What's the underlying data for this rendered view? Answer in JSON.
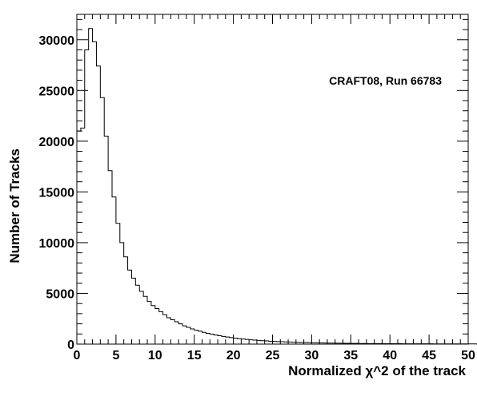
{
  "chart_data": {
    "type": "bar",
    "histogram": true,
    "xlabel": "Normalized χ^2 of the track",
    "ylabel": "Number of Tracks",
    "annotation": "CRAFT08, Run 66783",
    "xlim": [
      0,
      50
    ],
    "ylim": [
      0,
      32500
    ],
    "x_ticks": [
      0,
      5,
      10,
      15,
      20,
      25,
      30,
      35,
      40,
      45,
      50
    ],
    "y_ticks": [
      0,
      5000,
      10000,
      15000,
      20000,
      25000,
      30000
    ],
    "grid": false,
    "legend": "none",
    "bin_width": 0.5,
    "bin_start": 0,
    "values": [
      21000,
      21300,
      29000,
      31100,
      29800,
      27400,
      24300,
      20500,
      17100,
      14500,
      11900,
      10000,
      8600,
      7300,
      6500,
      5800,
      5200,
      4700,
      4200,
      3800,
      3500,
      3200,
      2900,
      2600,
      2400,
      2200,
      2000,
      1800,
      1650,
      1500,
      1380,
      1270,
      1160,
      1060,
      980,
      900,
      830,
      760,
      700,
      640,
      590,
      540,
      500,
      460,
      420,
      390,
      360,
      330,
      310,
      290,
      270,
      250,
      235,
      220,
      205,
      190,
      180,
      170,
      160,
      150,
      140,
      130,
      120,
      110,
      100,
      95,
      90,
      85,
      80,
      75,
      70,
      65,
      60,
      55,
      50,
      50,
      45,
      45,
      40,
      40,
      40,
      35,
      35,
      30,
      30,
      30,
      30,
      25,
      25,
      25,
      25,
      20,
      20,
      20,
      20,
      20,
      15,
      15,
      15,
      15,
      15,
      15,
      12,
      12,
      12,
      12,
      12,
      10,
      10,
      10,
      10,
      10,
      10,
      10,
      10,
      8,
      8,
      8,
      8,
      8,
      8,
      8,
      8,
      8,
      6,
      6,
      6,
      6,
      6,
      6,
      6,
      6,
      6,
      6,
      5,
      5,
      5,
      5,
      5,
      5,
      5,
      5,
      5,
      5,
      5,
      4,
      4,
      4,
      4,
      4,
      4,
      4,
      4,
      4,
      4,
      4,
      3,
      3,
      3,
      3,
      3,
      3,
      3,
      3,
      3,
      3,
      3,
      3,
      3,
      3,
      3,
      3,
      3,
      3,
      2,
      2,
      2,
      2,
      2,
      2,
      2,
      2,
      2,
      2,
      2,
      2,
      2,
      2,
      2,
      2,
      2,
      2,
      2,
      2,
      2,
      2,
      2,
      2,
      2,
      2,
      2,
      2,
      2,
      2,
      2,
      2,
      2,
      2,
      2,
      2,
      2,
      2,
      2,
      2,
      2,
      2,
      2,
      2,
      2,
      2,
      2,
      2,
      2,
      2,
      2,
      2,
      2,
      2,
      2,
      2,
      2,
      2,
      2,
      2,
      2,
      2,
      2,
      2,
      2,
      2,
      2,
      2,
      2,
      2,
      2,
      2,
      2,
      2,
      2,
      2,
      2,
      2,
      2,
      2,
      2,
      2,
      2,
      2,
      2,
      2,
      2,
      2,
      2,
      2,
      2,
      2,
      2,
      2,
      2,
      2
    ]
  }
}
